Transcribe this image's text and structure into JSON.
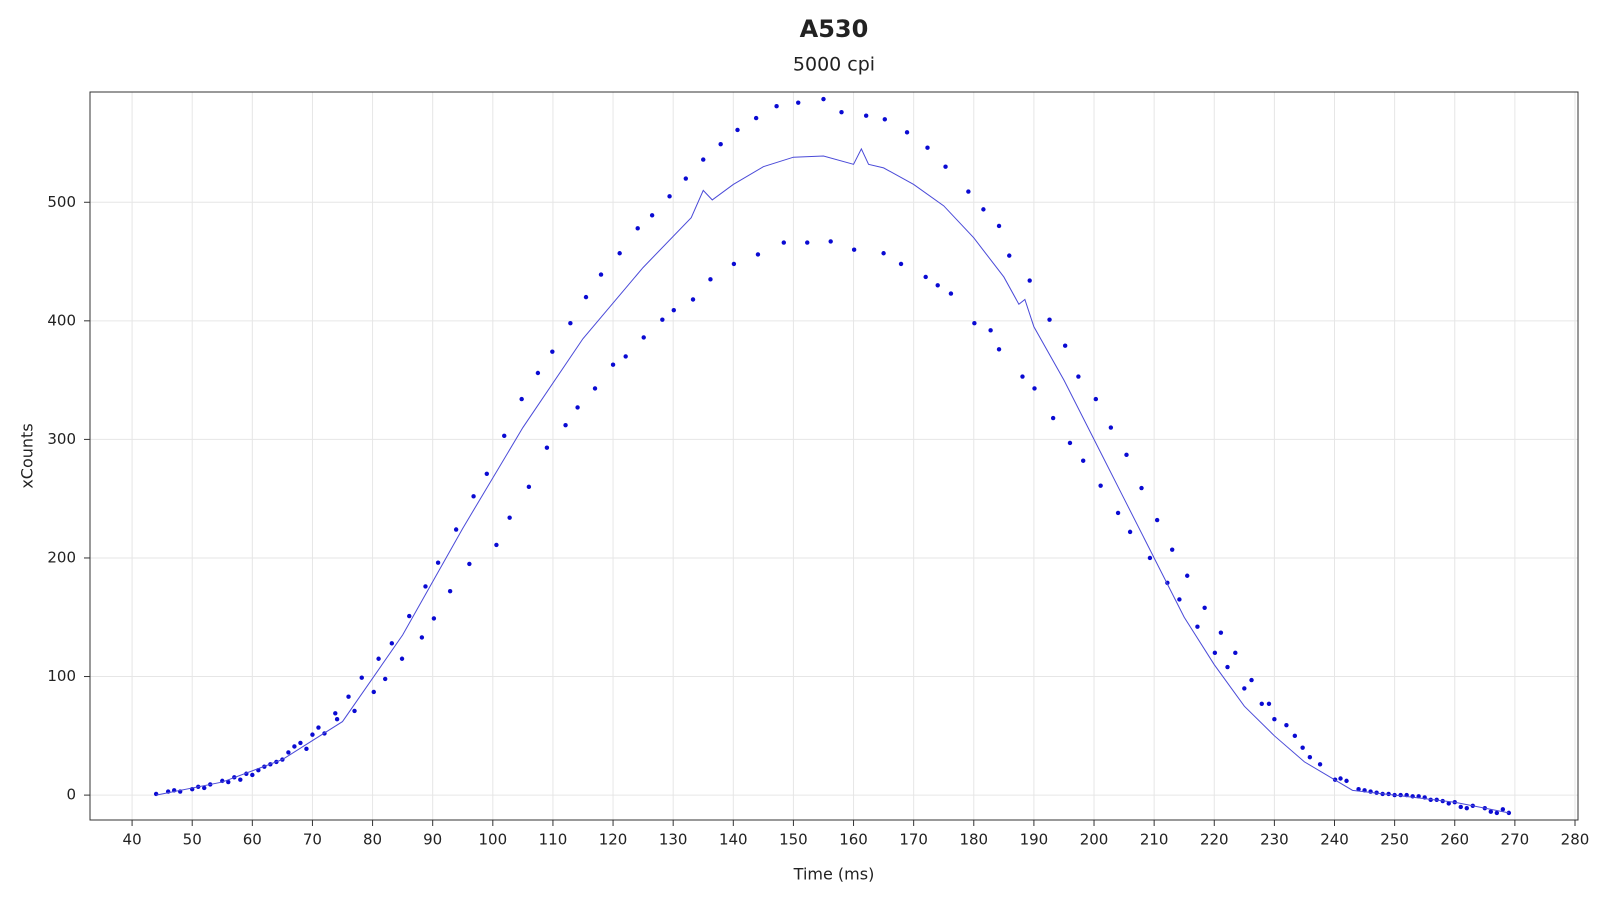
{
  "chart_data": {
    "type": "scatter",
    "title": "A530",
    "subtitle": "5000 cpi",
    "x_label": "Time (ms)",
    "y_label": "xCounts",
    "xlim": [
      33,
      280.5
    ],
    "ylim": [
      -21,
      593
    ],
    "xticks": [
      40,
      50,
      60,
      70,
      80,
      90,
      100,
      110,
      120,
      130,
      140,
      150,
      160,
      170,
      180,
      190,
      200,
      210,
      220,
      230,
      240,
      250,
      260,
      270,
      280
    ],
    "yticks": [
      0,
      100,
      200,
      300,
      400,
      500
    ],
    "grid": true,
    "series": [
      {
        "mode": "markers",
        "color": "#0a0ad2",
        "x": [
          44,
          46,
          47,
          48,
          50,
          51,
          52,
          53,
          55,
          56,
          57,
          58,
          59,
          60,
          61,
          62,
          63,
          64,
          65,
          66,
          67,
          68,
          69,
          70,
          71,
          72,
          73.8,
          76,
          78.2,
          81,
          83.2,
          86.1,
          88.8,
          90.9,
          93.9,
          96.8,
          99,
          101.9,
          104.8,
          107.5,
          109.9,
          112.9,
          115.5,
          118,
          121.1,
          124.1,
          126.5,
          129.4,
          132.1,
          135,
          137.9,
          140.7,
          143.8,
          147.2,
          150.8,
          155,
          158,
          162.1,
          165.2,
          168.9,
          172.3,
          175.3,
          179.1,
          181.6,
          184.2,
          185.9,
          189.3,
          192.6,
          195.2,
          197.4,
          200.3,
          202.8,
          205.4,
          207.9,
          210.5,
          213,
          215.5,
          218.4,
          221.1,
          223.5,
          226.2,
          229.1,
          232,
          234.7,
          237.6,
          240.1,
          74.1,
          77,
          80.2,
          82.1,
          84.9,
          88.2,
          90.2,
          92.9,
          96.1,
          100.6,
          102.8,
          106,
          109,
          112.1,
          114.1,
          117,
          120,
          122.1,
          125.1,
          128.2,
          130.1,
          133.3,
          136.2,
          140.1,
          144.1,
          148.4,
          152.3,
          156.2,
          160.1,
          165,
          167.9,
          172,
          174,
          176.2,
          180.1,
          182.8,
          184.2,
          188.1,
          190.1,
          193.2,
          196,
          198.2,
          201.1,
          204,
          206,
          209.3,
          212.2,
          214.2,
          217.2,
          220.1,
          222.2,
          225,
          227.9,
          230,
          233.4,
          235.9,
          241,
          242,
          244,
          245,
          246,
          247,
          248,
          249,
          250,
          251,
          252,
          253,
          254,
          255,
          256,
          257,
          258,
          259,
          260,
          261,
          262,
          263,
          265,
          266,
          267,
          268,
          269
        ],
        "values": [
          1,
          3,
          4,
          3,
          5,
          7,
          6,
          9,
          12,
          11,
          15,
          13,
          18,
          17,
          21,
          24,
          26,
          28,
          30,
          36,
          41,
          44,
          39,
          51,
          57,
          52,
          69,
          83,
          99,
          115,
          128,
          151,
          176,
          196,
          224,
          252,
          271,
          303,
          334,
          356,
          374,
          398,
          420,
          439,
          457,
          478,
          489,
          505,
          520,
          536,
          549,
          561,
          571,
          581,
          584,
          587,
          576,
          573,
          570,
          559,
          546,
          530,
          509,
          494,
          480,
          455,
          434,
          401,
          379,
          353,
          334,
          310,
          287,
          259,
          232,
          207,
          185,
          158,
          137,
          120,
          97,
          77,
          59,
          40,
          26,
          13,
          64,
          71,
          87,
          98,
          115,
          133,
          149,
          172,
          195,
          211,
          234,
          260,
          293,
          312,
          327,
          343,
          363,
          370,
          386,
          401,
          409,
          418,
          435,
          448,
          456,
          466,
          466,
          467,
          460,
          457,
          448,
          437,
          430,
          423,
          398,
          392,
          376,
          353,
          343,
          318,
          297,
          282,
          261,
          238,
          222,
          200,
          179,
          165,
          142,
          120,
          108,
          90,
          77,
          64,
          50,
          32,
          14,
          12,
          5,
          4,
          3,
          2,
          1,
          1,
          0,
          0,
          0,
          -1,
          -1,
          -2,
          -4,
          -4,
          -5,
          -7,
          -6,
          -10,
          -11,
          -9,
          -11,
          -14,
          -15,
          -12,
          -15
        ]
      },
      {
        "mode": "line",
        "color": "#4a4ad8",
        "x": [
          44,
          55,
          65,
          75,
          85,
          95,
          105,
          115,
          125,
          133,
          135,
          136.5,
          140,
          145,
          150,
          155,
          160,
          161.3,
          162.5,
          165,
          170,
          175,
          180,
          185,
          187.5,
          188.5,
          190,
          195,
          200,
          205,
          210,
          215,
          220,
          225,
          230,
          235,
          240,
          243,
          250,
          260,
          269
        ],
        "values": [
          0,
          11,
          30,
          62,
          135,
          225,
          310,
          385,
          445,
          487,
          510,
          502,
          515,
          530,
          538,
          539,
          532,
          545,
          532,
          529,
          515,
          497,
          470,
          437,
          414,
          418,
          395,
          350,
          300,
          250,
          200,
          150,
          110,
          75,
          50,
          28,
          13,
          4,
          0,
          -6,
          -15
        ]
      }
    ]
  }
}
